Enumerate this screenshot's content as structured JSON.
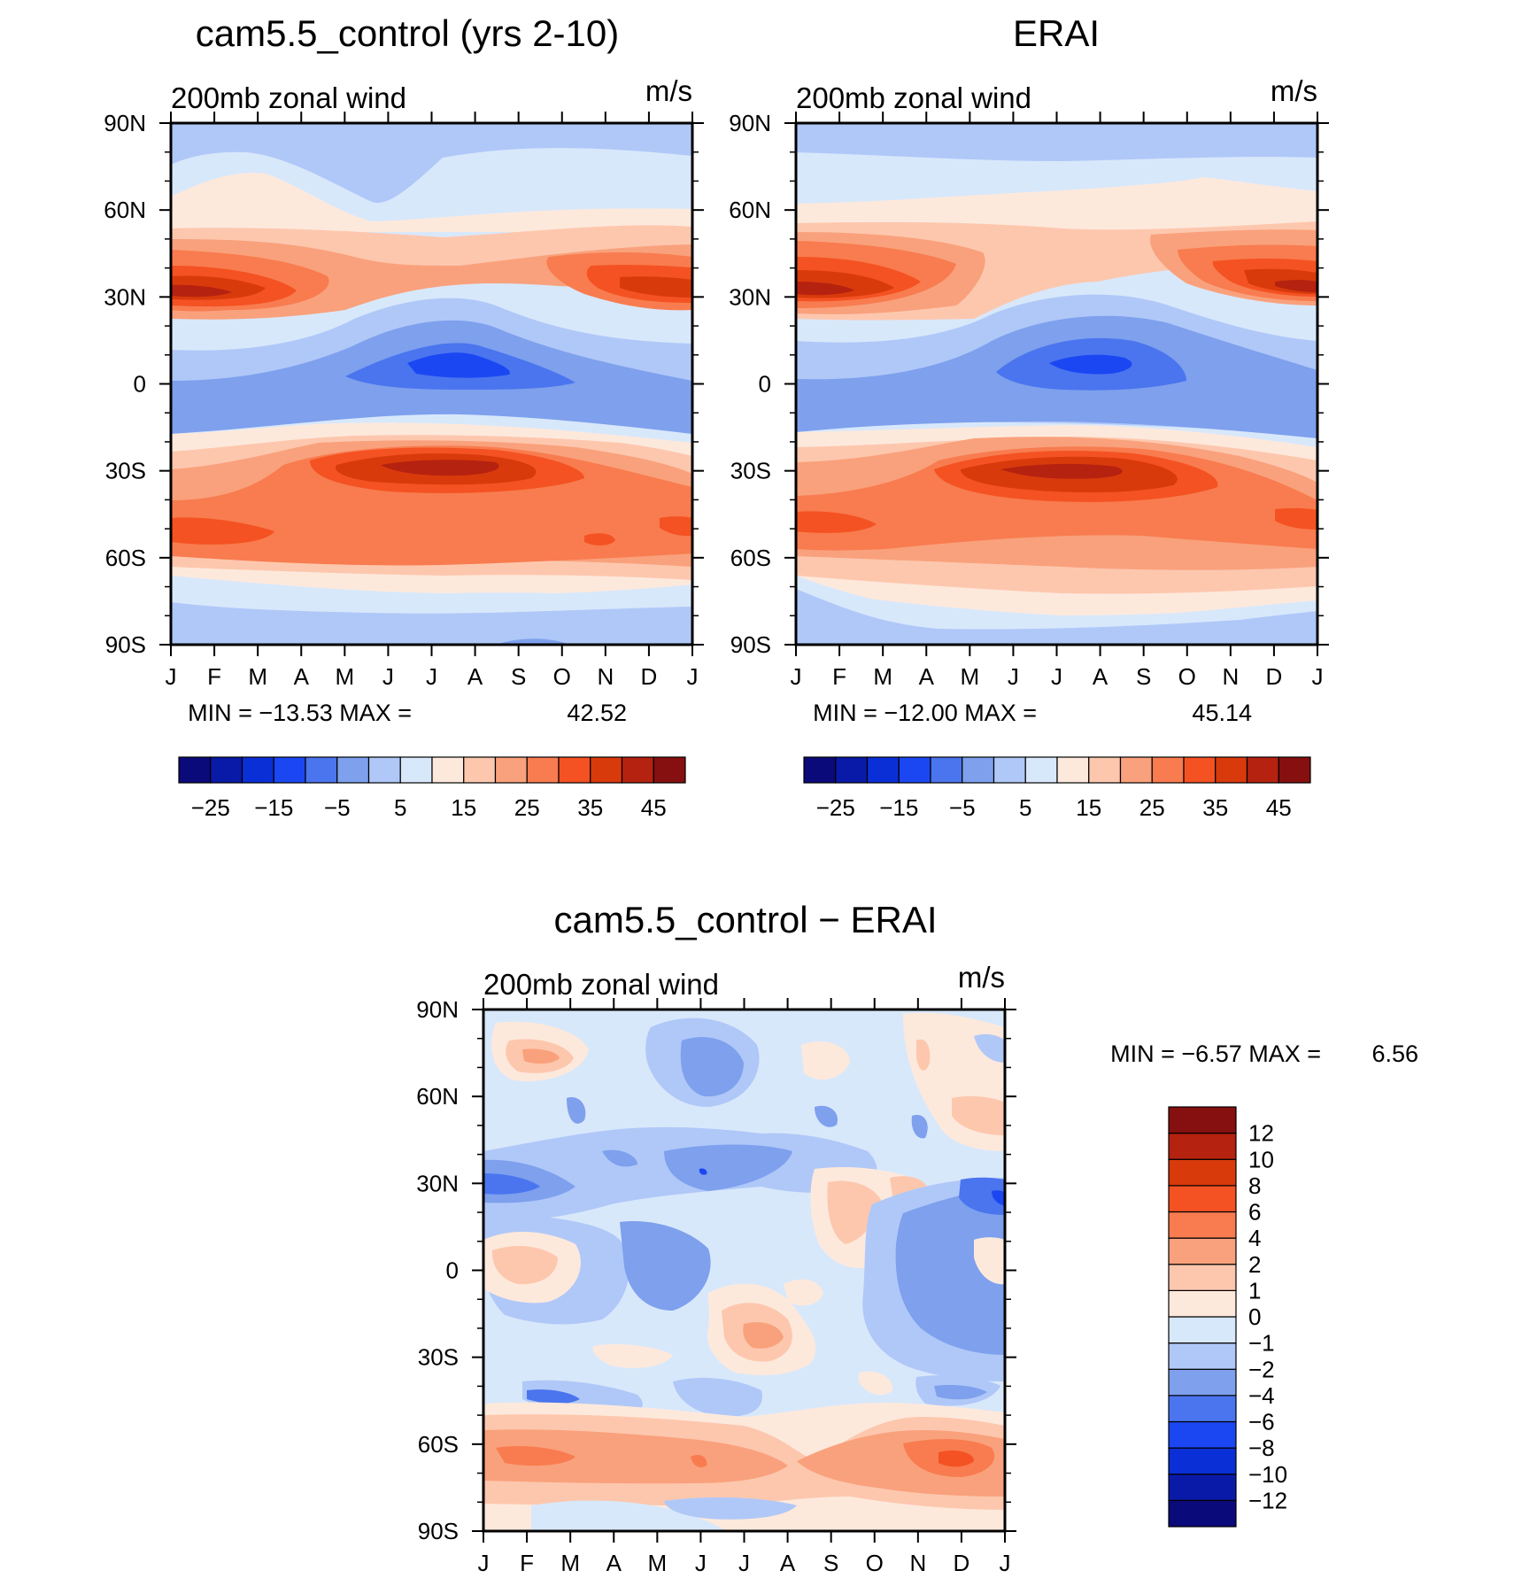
{
  "chart_data": [
    {
      "type": "heatmap",
      "panel_id": "model",
      "title": "cam5.5_control (yrs 2-10)",
      "left_string": "200mb zonal wind",
      "right_string": "m/s",
      "x_tick_labels": [
        "J",
        "F",
        "M",
        "A",
        "M",
        "J",
        "J",
        "A",
        "S",
        "O",
        "N",
        "D",
        "J"
      ],
      "y_tick_labels": [
        "90N",
        "60N",
        "30N",
        "0",
        "30S",
        "60S",
        "90S"
      ],
      "xlim": [
        0,
        12
      ],
      "ylim": [
        -90,
        90
      ],
      "min_label": "MIN = −13.53 MAX =",
      "max_label": "42.52",
      "min": -13.53,
      "max": 42.52,
      "colorbar": {
        "colors": [
          "#0a0a7a",
          "#0a1aa8",
          "#0b2fd6",
          "#1b47f3",
          "#4a75ee",
          "#7ea0ed",
          "#b0c8f8",
          "#d8e8fb",
          "#fde9dc",
          "#fdc7ae",
          "#f9a17c",
          "#f87c4f",
          "#f45222",
          "#d93a0c",
          "#b52210",
          "#860f0f"
        ],
        "ticks": [
          "−25",
          "−15",
          "−5",
          "5",
          "15",
          "25",
          "35",
          "45"
        ]
      }
    },
    {
      "type": "heatmap",
      "panel_id": "obs",
      "title": "ERAI",
      "left_string": "200mb zonal wind",
      "right_string": "m/s",
      "x_tick_labels": [
        "J",
        "F",
        "M",
        "A",
        "M",
        "J",
        "J",
        "A",
        "S",
        "O",
        "N",
        "D",
        "J"
      ],
      "y_tick_labels": [
        "90N",
        "60N",
        "30N",
        "0",
        "30S",
        "60S",
        "90S"
      ],
      "xlim": [
        0,
        12
      ],
      "ylim": [
        -90,
        90
      ],
      "min_label": "MIN = −12.00 MAX =",
      "max_label": "45.14",
      "min": -12.0,
      "max": 45.14,
      "colorbar": {
        "colors": [
          "#0a0a7a",
          "#0a1aa8",
          "#0b2fd6",
          "#1b47f3",
          "#4a75ee",
          "#7ea0ed",
          "#b0c8f8",
          "#d8e8fb",
          "#fde9dc",
          "#fdc7ae",
          "#f9a17c",
          "#f87c4f",
          "#f45222",
          "#d93a0c",
          "#b52210",
          "#860f0f"
        ],
        "ticks": [
          "−25",
          "−15",
          "−5",
          "5",
          "15",
          "25",
          "35",
          "45"
        ]
      }
    },
    {
      "type": "heatmap",
      "panel_id": "diff",
      "title": "cam5.5_control − ERAI",
      "left_string": "200mb zonal wind",
      "right_string": "m/s",
      "x_tick_labels": [
        "J",
        "F",
        "M",
        "A",
        "M",
        "J",
        "J",
        "A",
        "S",
        "O",
        "N",
        "D",
        "J"
      ],
      "y_tick_labels": [
        "90N",
        "60N",
        "30N",
        "0",
        "30S",
        "60S",
        "90S"
      ],
      "xlim": [
        0,
        12
      ],
      "ylim": [
        -90,
        90
      ],
      "min_label": "MIN = −6.57 MAX =",
      "max_label": "6.56",
      "min": -6.57,
      "max": 6.56,
      "colorbar": {
        "colors": [
          "#0a0a7a",
          "#0a1aa8",
          "#0b2fd6",
          "#1b47f3",
          "#4a75ee",
          "#7ea0ed",
          "#b0c8f8",
          "#d8e8fb",
          "#fde9dc",
          "#fdc7ae",
          "#f9a17c",
          "#f87c4f",
          "#f45222",
          "#d93a0c",
          "#b52210",
          "#860f0f"
        ],
        "ticks": [
          "−12",
          "−10",
          "−8",
          "−6",
          "−4",
          "−2",
          "−1",
          "0",
          "1",
          "2",
          "4",
          "6",
          "8",
          "10",
          "12"
        ]
      }
    }
  ]
}
